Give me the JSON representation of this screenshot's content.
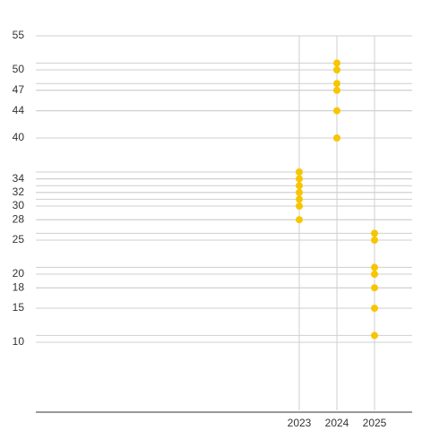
{
  "chart_data": {
    "type": "scatter",
    "x": [
      2023,
      2023,
      2023,
      2023,
      2023,
      2023,
      2023,
      2024,
      2024,
      2024,
      2024,
      2024,
      2024,
      2025,
      2025,
      2025,
      2025,
      2025,
      2025,
      2025
    ],
    "values": [
      35,
      34,
      33,
      32,
      31,
      30,
      28,
      51,
      50,
      48,
      47,
      44,
      40,
      26,
      25,
      21,
      20,
      18,
      15,
      11
    ],
    "color": "#f7c600",
    "xlim": [
      2016,
      2026
    ],
    "xticks": [
      2023,
      2024,
      2025
    ],
    "ylim": [
      0,
      55
    ],
    "yticks": [
      10,
      15,
      18,
      20,
      25,
      28,
      30,
      32,
      34,
      40,
      44,
      47,
      50,
      55
    ],
    "grid": true
  }
}
